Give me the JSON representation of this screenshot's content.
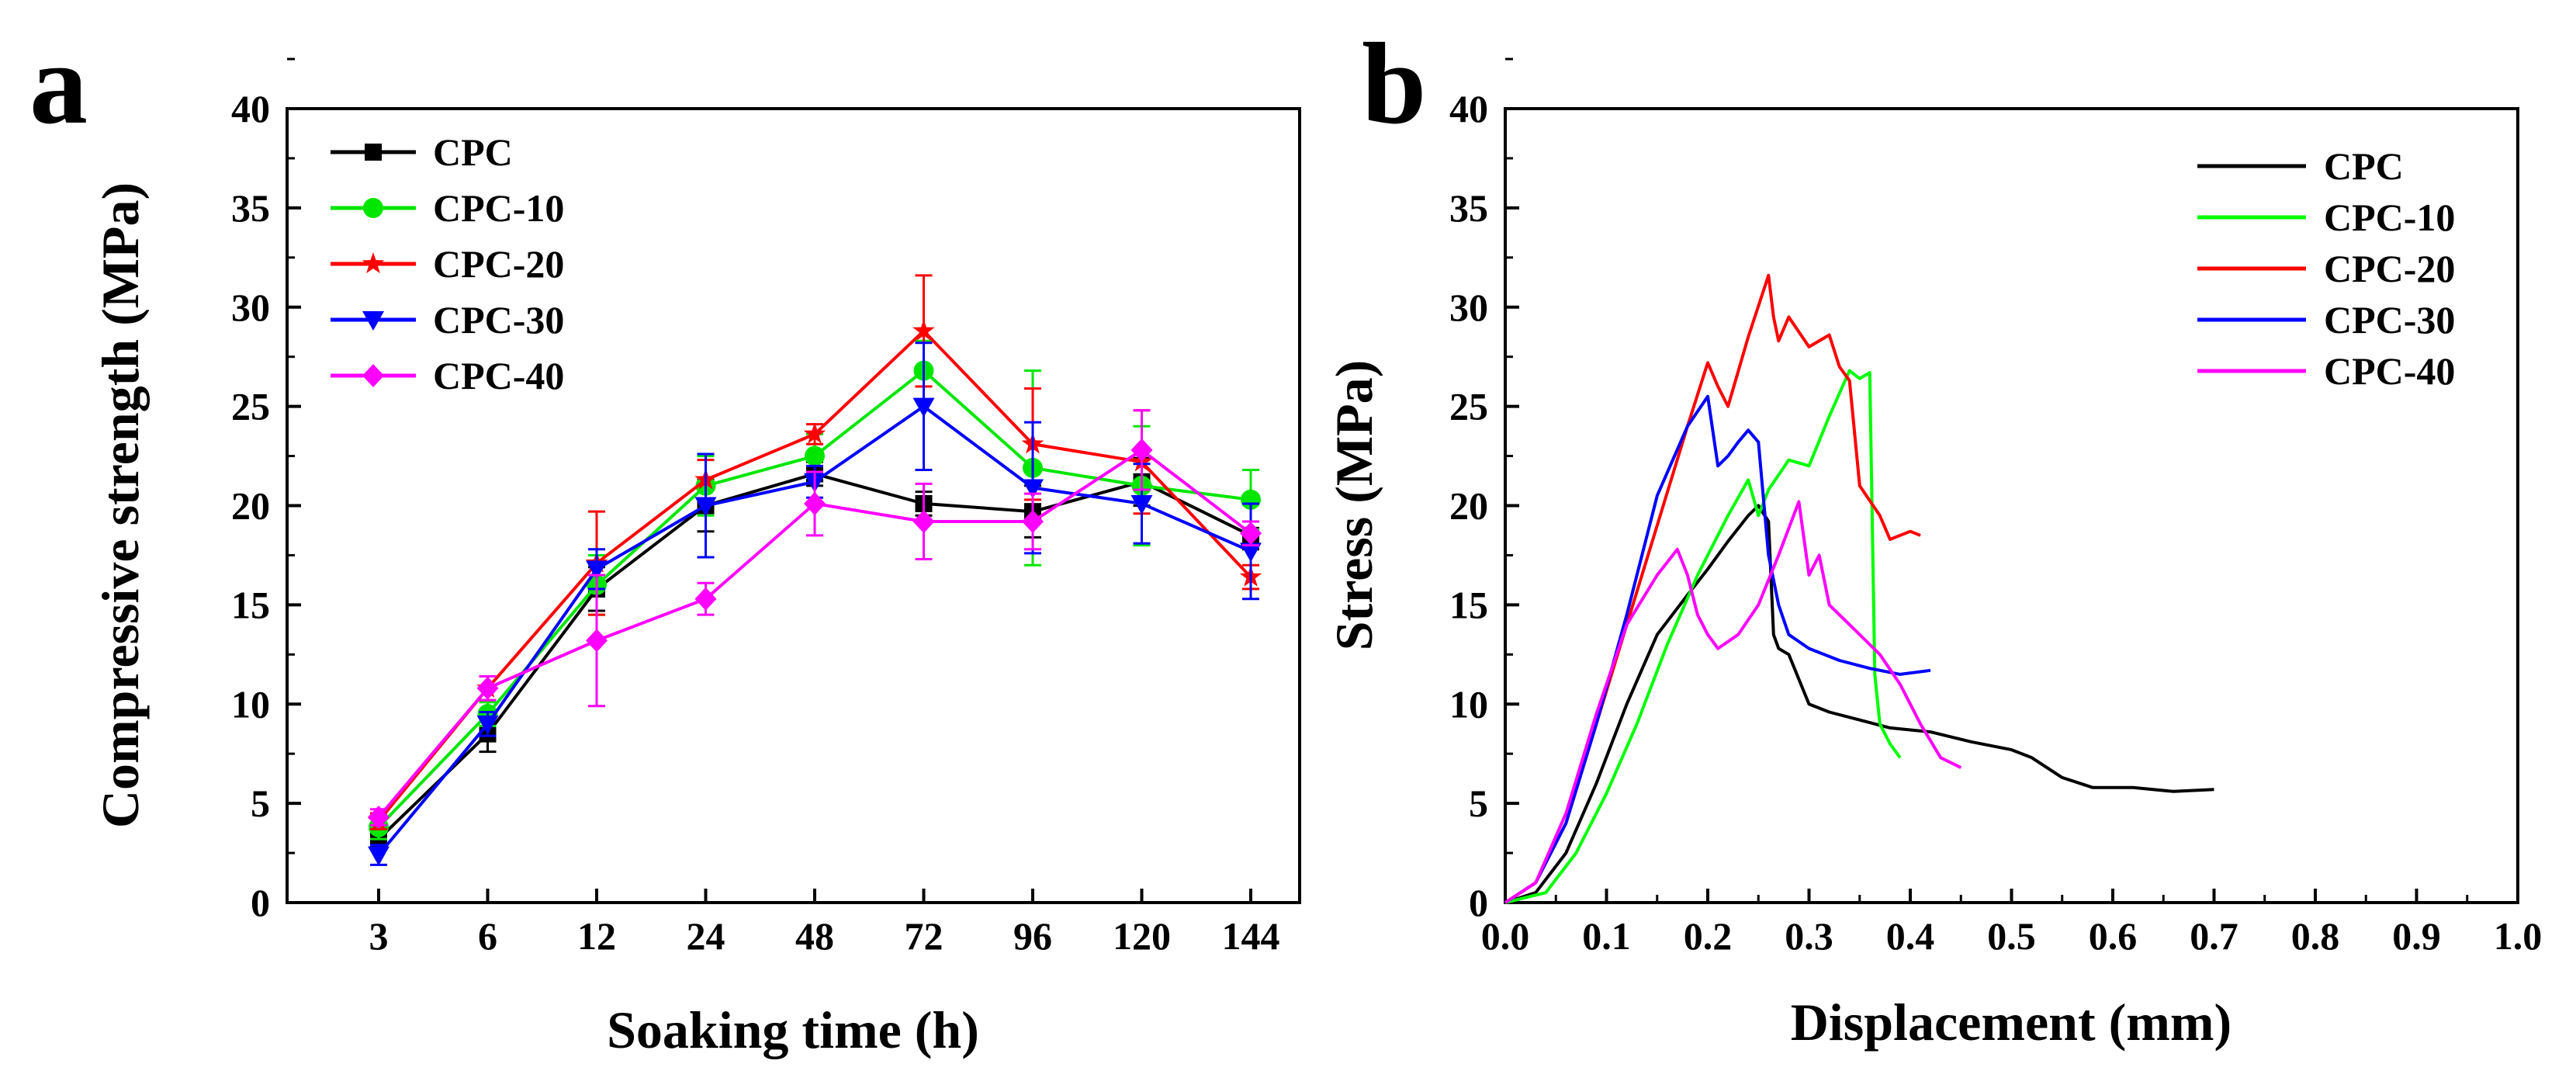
{
  "chart_data": [
    {
      "panel_label": "a",
      "type": "line",
      "xlabel": "Soaking time (h)",
      "ylabel": "Compressive strength (MPa)",
      "categories": [
        "3",
        "6",
        "12",
        "24",
        "48",
        "72",
        "96",
        "120",
        "144"
      ],
      "ylim": [
        0,
        40
      ],
      "yticks": [
        "0",
        "5",
        "10",
        "15",
        "20",
        "25",
        "30",
        "35",
        "40"
      ],
      "legend_position": "top-left",
      "series": [
        {
          "name": "CPC",
          "color": "#000000",
          "marker": "square",
          "values": [
            3.2,
            8.5,
            15.8,
            20.0,
            21.6,
            20.1,
            19.7,
            21.2,
            18.5
          ],
          "errors": [
            0.5,
            0.9,
            1.1,
            1.3,
            0.6,
            0.6,
            1.3,
            1.2,
            0.7
          ]
        },
        {
          "name": "CPC-10",
          "color": "#00e600",
          "marker": "circle",
          "values": [
            3.8,
            9.5,
            16.0,
            21.0,
            22.5,
            26.8,
            21.9,
            21.0,
            20.3
          ],
          "errors": [
            0.6,
            0.6,
            1.5,
            1.5,
            1.1,
            1.5,
            4.9,
            3.0,
            1.5
          ]
        },
        {
          "name": "CPC-20",
          "color": "#ff0000",
          "marker": "star",
          "values": [
            4.1,
            10.8,
            17.1,
            21.3,
            23.6,
            28.8,
            23.1,
            22.2,
            16.4
          ],
          "errors": [
            0.4,
            0.6,
            2.6,
            1.0,
            0.5,
            2.8,
            2.8,
            2.6,
            0.6
          ]
        },
        {
          "name": "CPC-30",
          "color": "#0000ff",
          "marker": "triangle-down",
          "values": [
            2.4,
            9.0,
            16.8,
            20.0,
            21.2,
            25.0,
            20.9,
            20.1,
            17.7
          ],
          "errors": [
            0.5,
            0.6,
            1.0,
            2.6,
            0.8,
            3.2,
            3.3,
            2.0,
            2.4
          ]
        },
        {
          "name": "CPC-40",
          "color": "#ff00ff",
          "marker": "diamond",
          "values": [
            4.3,
            10.8,
            13.2,
            15.3,
            20.1,
            19.2,
            19.2,
            22.8,
            18.6
          ],
          "errors": [
            0.4,
            0.6,
            3.3,
            0.8,
            1.6,
            1.9,
            1.4,
            2.0,
            0.6
          ]
        }
      ]
    },
    {
      "panel_label": "b",
      "type": "line",
      "xlabel": "Displacement (mm)",
      "ylabel": "Stress (MPa)",
      "xlim": [
        0.0,
        1.0
      ],
      "ylim": [
        0,
        40
      ],
      "xticks": [
        "0.0",
        "0.1",
        "0.2",
        "0.3",
        "0.4",
        "0.5",
        "0.6",
        "0.7",
        "0.8",
        "0.9",
        "1.0"
      ],
      "yticks": [
        "0",
        "5",
        "10",
        "15",
        "20",
        "25",
        "30",
        "35",
        "40"
      ],
      "legend_position": "top-right",
      "series": [
        {
          "name": "CPC",
          "color": "#000000",
          "x": [
            0,
            0.03,
            0.06,
            0.09,
            0.12,
            0.15,
            0.18,
            0.2,
            0.22,
            0.24,
            0.25,
            0.26,
            0.265,
            0.27,
            0.28,
            0.3,
            0.32,
            0.35,
            0.38,
            0.42,
            0.46,
            0.5,
            0.52,
            0.55,
            0.58,
            0.62,
            0.66,
            0.7
          ],
          "y": [
            0,
            0.5,
            2.5,
            6,
            10,
            13.5,
            15.5,
            16.8,
            18.2,
            19.5,
            20,
            19.2,
            13.5,
            12.8,
            12.5,
            10,
            9.6,
            9.2,
            8.8,
            8.6,
            8.1,
            7.7,
            7.3,
            6.3,
            5.8,
            5.8,
            5.6,
            5.7
          ]
        },
        {
          "name": "CPC-10",
          "color": "#00ff00",
          "x": [
            0,
            0.04,
            0.07,
            0.1,
            0.13,
            0.16,
            0.19,
            0.22,
            0.24,
            0.25,
            0.26,
            0.28,
            0.3,
            0.32,
            0.34,
            0.35,
            0.36,
            0.365,
            0.37,
            0.38,
            0.39
          ],
          "y": [
            0,
            0.5,
            2.5,
            5.5,
            9,
            13,
            16.5,
            19.5,
            21.3,
            19.5,
            20.8,
            22.3,
            22.0,
            24.5,
            26.8,
            26.4,
            26.7,
            11.5,
            9,
            8,
            7.3
          ]
        },
        {
          "name": "CPC-20",
          "color": "#ff0000",
          "x": [
            0,
            0.03,
            0.06,
            0.09,
            0.12,
            0.15,
            0.18,
            0.2,
            0.21,
            0.22,
            0.24,
            0.26,
            0.265,
            0.27,
            0.28,
            0.3,
            0.32,
            0.33,
            0.34,
            0.35,
            0.37,
            0.38,
            0.4,
            0.41
          ],
          "y": [
            0,
            1,
            4,
            9,
            14,
            19,
            24,
            27.2,
            26,
            25,
            28.5,
            31.6,
            29.5,
            28.3,
            29.5,
            28,
            28.6,
            27,
            26.3,
            21,
            19.5,
            18.3,
            18.7,
            18.5
          ]
        },
        {
          "name": "CPC-30",
          "color": "#0000ff",
          "x": [
            0,
            0.03,
            0.06,
            0.09,
            0.12,
            0.15,
            0.18,
            0.2,
            0.21,
            0.22,
            0.23,
            0.24,
            0.25,
            0.26,
            0.27,
            0.28,
            0.3,
            0.33,
            0.36,
            0.39,
            0.42
          ],
          "y": [
            0,
            1,
            4,
            9,
            14.5,
            20.5,
            24,
            25.5,
            22,
            22.5,
            23.2,
            23.8,
            23.2,
            17.5,
            15,
            13.5,
            12.8,
            12.2,
            11.8,
            11.5,
            11.7
          ]
        },
        {
          "name": "CPC-40",
          "color": "#ff00ff",
          "x": [
            0,
            0.03,
            0.06,
            0.09,
            0.12,
            0.15,
            0.17,
            0.18,
            0.19,
            0.2,
            0.21,
            0.23,
            0.25,
            0.27,
            0.29,
            0.3,
            0.31,
            0.32,
            0.33,
            0.35,
            0.37,
            0.39,
            0.41,
            0.43,
            0.45
          ],
          "y": [
            0,
            1,
            4.5,
            9.5,
            14,
            16.5,
            17.8,
            16.5,
            14.5,
            13.5,
            12.8,
            13.5,
            15,
            17.5,
            20.2,
            16.5,
            17.5,
            15,
            14.5,
            13.5,
            12.5,
            11,
            9,
            7.3,
            6.8
          ]
        }
      ]
    }
  ]
}
